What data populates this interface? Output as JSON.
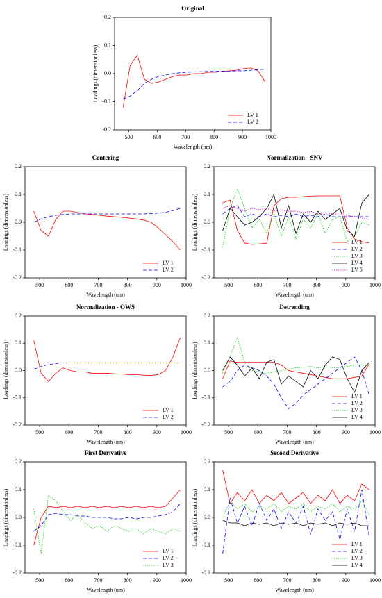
{
  "chart_data": [
    {
      "type": "line",
      "title": "Original",
      "xlabel": "Wavelength (nm)",
      "ylabel": "Loadings (dimensionless)",
      "legend": "lower right",
      "x": [
        480,
        505,
        530,
        555,
        580,
        605,
        630,
        655,
        680,
        705,
        730,
        755,
        780,
        805,
        830,
        855,
        880,
        905,
        930,
        955,
        980
      ],
      "xlim": [
        450,
        1000
      ],
      "xticks": [
        500,
        600,
        700,
        800,
        900,
        1000
      ],
      "ylim": [
        -0.2,
        0.2
      ],
      "yticks": [
        -0.2,
        -0.1,
        {
          "value": 0,
          "label": "0.0"
        },
        0.1,
        0.2
      ],
      "series": [
        {
          "name": "LV 1",
          "color": "#ff0000",
          "linestyle": "solid",
          "values": [
            -0.12,
            0.03,
            0.065,
            -0.02,
            -0.035,
            -0.03,
            -0.02,
            -0.01,
            -0.005,
            -0.005,
            0,
            0,
            0.005,
            0.005,
            0.008,
            0.01,
            0.012,
            0.018,
            0.02,
            0.01,
            -0.03
          ]
        },
        {
          "name": "LV 2",
          "color": "#0000ff",
          "linestyle": "dashed",
          "values": [
            -0.09,
            -0.08,
            -0.06,
            -0.035,
            -0.02,
            -0.01,
            -0.005,
            0,
            0.003,
            0.005,
            0.006,
            0.007,
            0.008,
            0.008,
            0.009,
            0.009,
            0.01,
            0.01,
            0.012,
            0.014,
            0.016
          ]
        }
      ]
    },
    {
      "type": "line",
      "title": "Centering",
      "xlabel": "Wavelength (nm)",
      "ylabel": "Loadings (dimensionless)",
      "legend": "lower right",
      "x": [
        480,
        505,
        530,
        555,
        580,
        605,
        630,
        655,
        680,
        705,
        730,
        755,
        780,
        805,
        830,
        855,
        880,
        905,
        930,
        955,
        980
      ],
      "xlim": [
        450,
        1000
      ],
      "xticks": [
        500,
        600,
        700,
        800,
        900,
        1000
      ],
      "ylim": [
        -0.2,
        0.2
      ],
      "yticks": [
        -0.2,
        -0.1,
        {
          "value": 0,
          "label": "0.0"
        },
        0.1,
        0.2
      ],
      "series": [
        {
          "name": "LV 1",
          "color": "#ff0000",
          "linestyle": "solid",
          "values": [
            0.04,
            -0.03,
            -0.05,
            0.01,
            0.04,
            0.04,
            0.035,
            0.03,
            0.028,
            0.025,
            0.022,
            0.02,
            0.018,
            0.015,
            0.012,
            0.008,
            0.0,
            -0.02,
            -0.045,
            -0.07,
            -0.1
          ]
        },
        {
          "name": "LV 2",
          "color": "#0000ff",
          "linestyle": "dashed",
          "values": [
            0.0,
            0.012,
            0.02,
            0.025,
            0.028,
            0.03,
            0.03,
            0.03,
            0.03,
            0.03,
            0.03,
            0.03,
            0.03,
            0.03,
            0.03,
            0.03,
            0.031,
            0.033,
            0.036,
            0.042,
            0.05
          ]
        }
      ]
    },
    {
      "type": "line",
      "title": "Normalization - SNV",
      "xlabel": "Wavelength (nm)",
      "ylabel": "Loadings (dimensionless)",
      "legend": "lower right",
      "x": [
        480,
        505,
        530,
        555,
        580,
        605,
        630,
        655,
        680,
        705,
        730,
        755,
        780,
        805,
        830,
        855,
        880,
        905,
        930,
        955,
        980
      ],
      "xlim": [
        450,
        1000
      ],
      "xticks": [
        500,
        600,
        700,
        800,
        900,
        1000
      ],
      "ylim": [
        -0.2,
        0.2
      ],
      "yticks": [
        -0.2,
        -0.1,
        {
          "value": 0,
          "label": "0.0"
        },
        0.1,
        0.2
      ],
      "series": [
        {
          "name": "LV 1",
          "color": "#ff0000",
          "linestyle": "solid",
          "values": [
            0.07,
            0.08,
            -0.03,
            -0.075,
            -0.08,
            -0.078,
            -0.075,
            0.06,
            0.085,
            0.09,
            0.09,
            0.092,
            0.094,
            0.095,
            0.095,
            0.095,
            0.095,
            -0.02,
            -0.06,
            -0.07,
            -0.075
          ]
        },
        {
          "name": "LV 2",
          "color": "#0000ff",
          "linestyle": "dashed",
          "values": [
            0.03,
            0.05,
            0.06,
            0.02,
            0.03,
            0.02,
            0.03,
            0.02,
            0.025,
            0.02,
            0.03,
            0.02,
            0.025,
            0.02,
            0.03,
            0.02,
            0.02,
            0.02,
            0.02,
            0.02,
            0.02
          ]
        },
        {
          "name": "LV 3",
          "color": "#00cc00",
          "linestyle": "dotted",
          "values": [
            -0.09,
            0.05,
            0.12,
            0.05,
            -0.02,
            0.01,
            -0.04,
            0.03,
            -0.05,
            0.02,
            -0.06,
            0.01,
            -0.02,
            0.03,
            -0.04,
            0.01,
            0.02,
            -0.07,
            -0.05,
            0.0,
            -0.01
          ]
        },
        {
          "name": "LV 4",
          "color": "#000000",
          "linestyle": "solid",
          "values": [
            -0.03,
            0.05,
            0.02,
            -0.01,
            0.0,
            0.02,
            0.05,
            0.1,
            -0.02,
            0.06,
            -0.04,
            0.03,
            0.0,
            0.04,
            0.01,
            0.03,
            0.05,
            -0.03,
            -0.05,
            0.07,
            0.1
          ]
        },
        {
          "name": "LV 5",
          "color": "#cc00cc",
          "linestyle": "dotted",
          "values": [
            0.05,
            0.06,
            0.05,
            0.04,
            0.05,
            0.045,
            0.05,
            0.04,
            0.045,
            0.04,
            0.04,
            0.035,
            0.04,
            0.03,
            0.035,
            0.03,
            0.03,
            0.025,
            0.02,
            0.015,
            0.01
          ]
        }
      ]
    },
    {
      "type": "line",
      "title": "Normalization - OWS",
      "xlabel": "Wavelength (nm)",
      "ylabel": "Loadings (dimensionless)",
      "legend": "lower right",
      "x": [
        480,
        505,
        530,
        555,
        580,
        605,
        630,
        655,
        680,
        705,
        730,
        755,
        780,
        805,
        830,
        855,
        880,
        905,
        930,
        955,
        980
      ],
      "xlim": [
        450,
        1000
      ],
      "xticks": [
        500,
        600,
        700,
        800,
        900,
        1000
      ],
      "ylim": [
        -0.2,
        0.2
      ],
      "yticks": [
        -0.2,
        -0.1,
        {
          "value": 0,
          "label": "0.0"
        },
        0.1,
        0.2
      ],
      "series": [
        {
          "name": "LV 1",
          "color": "#ff0000",
          "linestyle": "solid",
          "values": [
            0.11,
            -0.01,
            -0.04,
            -0.01,
            0.01,
            0.0,
            -0.005,
            -0.005,
            -0.01,
            -0.01,
            -0.01,
            -0.012,
            -0.013,
            -0.015,
            -0.015,
            -0.017,
            -0.018,
            -0.015,
            0.0,
            0.05,
            0.12
          ]
        },
        {
          "name": "LV 2",
          "color": "#0000ff",
          "linestyle": "dashed",
          "values": [
            0.005,
            0.015,
            0.022,
            0.026,
            0.028,
            0.028,
            0.028,
            0.028,
            0.028,
            0.028,
            0.028,
            0.028,
            0.028,
            0.028,
            0.028,
            0.028,
            0.028,
            0.028,
            0.028,
            0.028,
            0.028
          ]
        }
      ]
    },
    {
      "type": "line",
      "title": "Detrending",
      "xlabel": "Wavelength (nm)",
      "ylabel": "Loadings (dimensionless)",
      "legend": "lower right",
      "x": [
        480,
        505,
        530,
        555,
        580,
        605,
        630,
        655,
        680,
        705,
        730,
        755,
        780,
        805,
        830,
        855,
        880,
        905,
        930,
        955,
        980
      ],
      "xlim": [
        450,
        1000
      ],
      "xticks": [
        500,
        600,
        700,
        800,
        900,
        1000
      ],
      "ylim": [
        -0.2,
        0.2
      ],
      "yticks": [
        -0.2,
        -0.1,
        {
          "value": 0,
          "label": "0.0"
        },
        0.1,
        0.2
      ],
      "series": [
        {
          "name": "LV 1",
          "color": "#ff0000",
          "linestyle": "solid",
          "values": [
            -0.03,
            0.035,
            0.03,
            0.03,
            0.03,
            0.03,
            0.03,
            0.03,
            0.02,
            0.0,
            -0.005,
            -0.01,
            -0.015,
            -0.02,
            -0.025,
            -0.03,
            -0.03,
            -0.03,
            -0.025,
            -0.02,
            0.025
          ]
        },
        {
          "name": "LV 2",
          "color": "#0000ff",
          "linestyle": "dashed",
          "values": [
            -0.06,
            -0.04,
            0.0,
            0.02,
            0.01,
            0.0,
            -0.02,
            -0.05,
            -0.1,
            -0.14,
            -0.12,
            -0.09,
            -0.07,
            -0.05,
            -0.03,
            -0.01,
            0.01,
            0.03,
            0.05,
            0.0,
            -0.09
          ]
        },
        {
          "name": "LV 3",
          "color": "#00cc00",
          "linestyle": "dotted",
          "values": [
            -0.01,
            0.05,
            0.12,
            0.03,
            0.0,
            -0.005,
            -0.01,
            -0.005,
            0.0,
            0.005,
            0.01,
            0.012,
            0.015,
            0.01,
            0.015,
            0.01,
            0.012,
            0.015,
            0.02,
            0.02,
            0.02
          ]
        },
        {
          "name": "LV 4",
          "color": "#000000",
          "linestyle": "solid",
          "values": [
            0.0,
            0.05,
            0.02,
            -0.02,
            0.01,
            -0.03,
            0.03,
            0.04,
            -0.05,
            -0.02,
            -0.04,
            -0.06,
            0.0,
            -0.03,
            0.02,
            0.05,
            0.04,
            -0.03,
            -0.08,
            0.0,
            0.03
          ]
        }
      ]
    },
    {
      "type": "line",
      "title": "First Derivative",
      "xlabel": "Wavelength (nm)",
      "ylabel": "Loadings (dimensionless)",
      "legend": "lower right",
      "x": [
        480,
        505,
        530,
        555,
        580,
        605,
        630,
        655,
        680,
        705,
        730,
        755,
        780,
        805,
        830,
        855,
        880,
        905,
        930,
        955,
        980
      ],
      "xlim": [
        450,
        1000
      ],
      "xticks": [
        500,
        600,
        700,
        800,
        900,
        1000
      ],
      "ylim": [
        -0.2,
        0.2
      ],
      "yticks": [
        -0.2,
        -0.1,
        {
          "value": 0,
          "label": "0.0"
        },
        0.1,
        0.2
      ],
      "series": [
        {
          "name": "LV 1",
          "color": "#ff0000",
          "linestyle": "solid",
          "values": [
            -0.1,
            0.0,
            0.04,
            0.035,
            0.04,
            0.035,
            0.04,
            0.035,
            0.04,
            0.035,
            0.04,
            0.035,
            0.04,
            0.035,
            0.04,
            0.035,
            0.04,
            0.035,
            0.04,
            0.07,
            0.1
          ]
        },
        {
          "name": "LV 2",
          "color": "#0000ff",
          "linestyle": "dashed",
          "values": [
            -0.05,
            -0.03,
            0.01,
            0.015,
            0.01,
            0.01,
            0.005,
            0.005,
            0.0,
            0.0,
            0.0,
            -0.005,
            -0.005,
            0.0,
            -0.005,
            0.0,
            0.0,
            0.005,
            0.01,
            0.02,
            0.05
          ]
        },
        {
          "name": "LV 3",
          "color": "#00cc00",
          "linestyle": "dotted",
          "values": [
            0.03,
            -0.13,
            0.08,
            0.06,
            0.02,
            -0.01,
            0.01,
            -0.02,
            -0.04,
            -0.03,
            -0.05,
            -0.03,
            -0.04,
            -0.05,
            -0.04,
            -0.06,
            -0.04,
            -0.05,
            -0.06,
            -0.04,
            -0.05
          ]
        }
      ]
    },
    {
      "type": "line",
      "title": "Second Derivative",
      "xlabel": "Wavelength (nm)",
      "ylabel": "Loadings (dimensionless)",
      "legend": "lower right",
      "x": [
        480,
        505,
        530,
        555,
        580,
        605,
        630,
        655,
        680,
        705,
        730,
        755,
        780,
        805,
        830,
        855,
        880,
        905,
        930,
        955,
        980
      ],
      "xlim": [
        450,
        1000
      ],
      "xticks": [
        500,
        600,
        700,
        800,
        900,
        1000
      ],
      "ylim": [
        -0.2,
        0.2
      ],
      "yticks": [
        -0.2,
        -0.1,
        {
          "value": 0,
          "label": "0.0"
        },
        0.1,
        0.2
      ],
      "series": [
        {
          "name": "LV 1",
          "color": "#ff0000",
          "linestyle": "solid",
          "values": [
            0.17,
            0.05,
            0.09,
            0.06,
            0.1,
            0.05,
            0.08,
            0.06,
            0.09,
            0.05,
            0.07,
            0.09,
            0.05,
            0.08,
            0.06,
            0.1,
            0.05,
            0.08,
            0.06,
            0.12,
            0.1
          ]
        },
        {
          "name": "LV 2",
          "color": "#0000ff",
          "linestyle": "dashed",
          "values": [
            -0.13,
            0.07,
            -0.02,
            0.04,
            -0.03,
            0.05,
            -0.01,
            0.03,
            -0.04,
            0.02,
            -0.02,
            0.04,
            -0.06,
            0.03,
            -0.01,
            0.02,
            -0.08,
            0.03,
            -0.05,
            0.1,
            -0.07
          ]
        },
        {
          "name": "LV 3",
          "color": "#00cc00",
          "linestyle": "dotted",
          "values": [
            0.0,
            0.06,
            0.03,
            0.05,
            0.02,
            0.04,
            0.03,
            0.05,
            0.02,
            0.04,
            0.03,
            0.05,
            0.02,
            0.04,
            0.03,
            0.05,
            0.02,
            0.04,
            0.03,
            0.06,
            0.01
          ]
        },
        {
          "name": "LV 4",
          "color": "#000000",
          "linestyle": "solid",
          "values": [
            -0.01,
            -0.02,
            -0.02,
            -0.03,
            -0.02,
            -0.025,
            -0.02,
            -0.03,
            -0.02,
            -0.025,
            -0.02,
            -0.03,
            -0.02,
            -0.025,
            -0.02,
            -0.03,
            -0.02,
            -0.025,
            -0.02,
            -0.03,
            -0.03
          ]
        }
      ]
    }
  ]
}
